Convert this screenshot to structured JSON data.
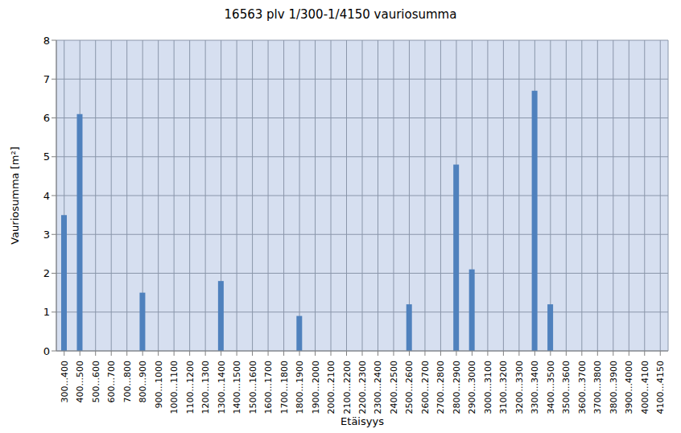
{
  "chart_data": {
    "type": "bar",
    "title": "16563 plv 1/300-1/4150 vauriosumma",
    "x_label": "Etäisyys",
    "y_label": "Vauriosumma [m²]",
    "categories": [
      "300...400",
      "400...500",
      "500...600",
      "600...700",
      "700...800",
      "800...900",
      "900...1000",
      "1000...1100",
      "1100...1200",
      "1200...1300",
      "1300...1400",
      "1400...1500",
      "1500...1600",
      "1600...1700",
      "1700...1800",
      "1800...1900",
      "1900...2000",
      "2000...2100",
      "2100...2200",
      "2200...2300",
      "2300...2400",
      "2400...2500",
      "2500...2600",
      "2600...2700",
      "2700...2800",
      "2800...2900",
      "2900...3000",
      "3000...3100",
      "3100...3200",
      "3200...3300",
      "3300...3400",
      "3400...3500",
      "3500...3600",
      "3600...3700",
      "3700...3800",
      "3800...3900",
      "3900...4000",
      "4000...4100",
      "4100...4150"
    ],
    "values": [
      3.5,
      6.1,
      0,
      0,
      0,
      1.5,
      0,
      0,
      0,
      0,
      1.8,
      0,
      0,
      0,
      0,
      0.9,
      0,
      0,
      0,
      0,
      0,
      0,
      1.2,
      0,
      0,
      4.8,
      2.1,
      0,
      0,
      0,
      6.7,
      1.2,
      0,
      0,
      0,
      0,
      0,
      0,
      0
    ],
    "color": "#4f81bd",
    "ylim": [
      0,
      8
    ],
    "yticks": [
      0,
      1,
      2,
      3,
      4,
      5,
      6,
      7,
      8
    ],
    "grid": true
  }
}
